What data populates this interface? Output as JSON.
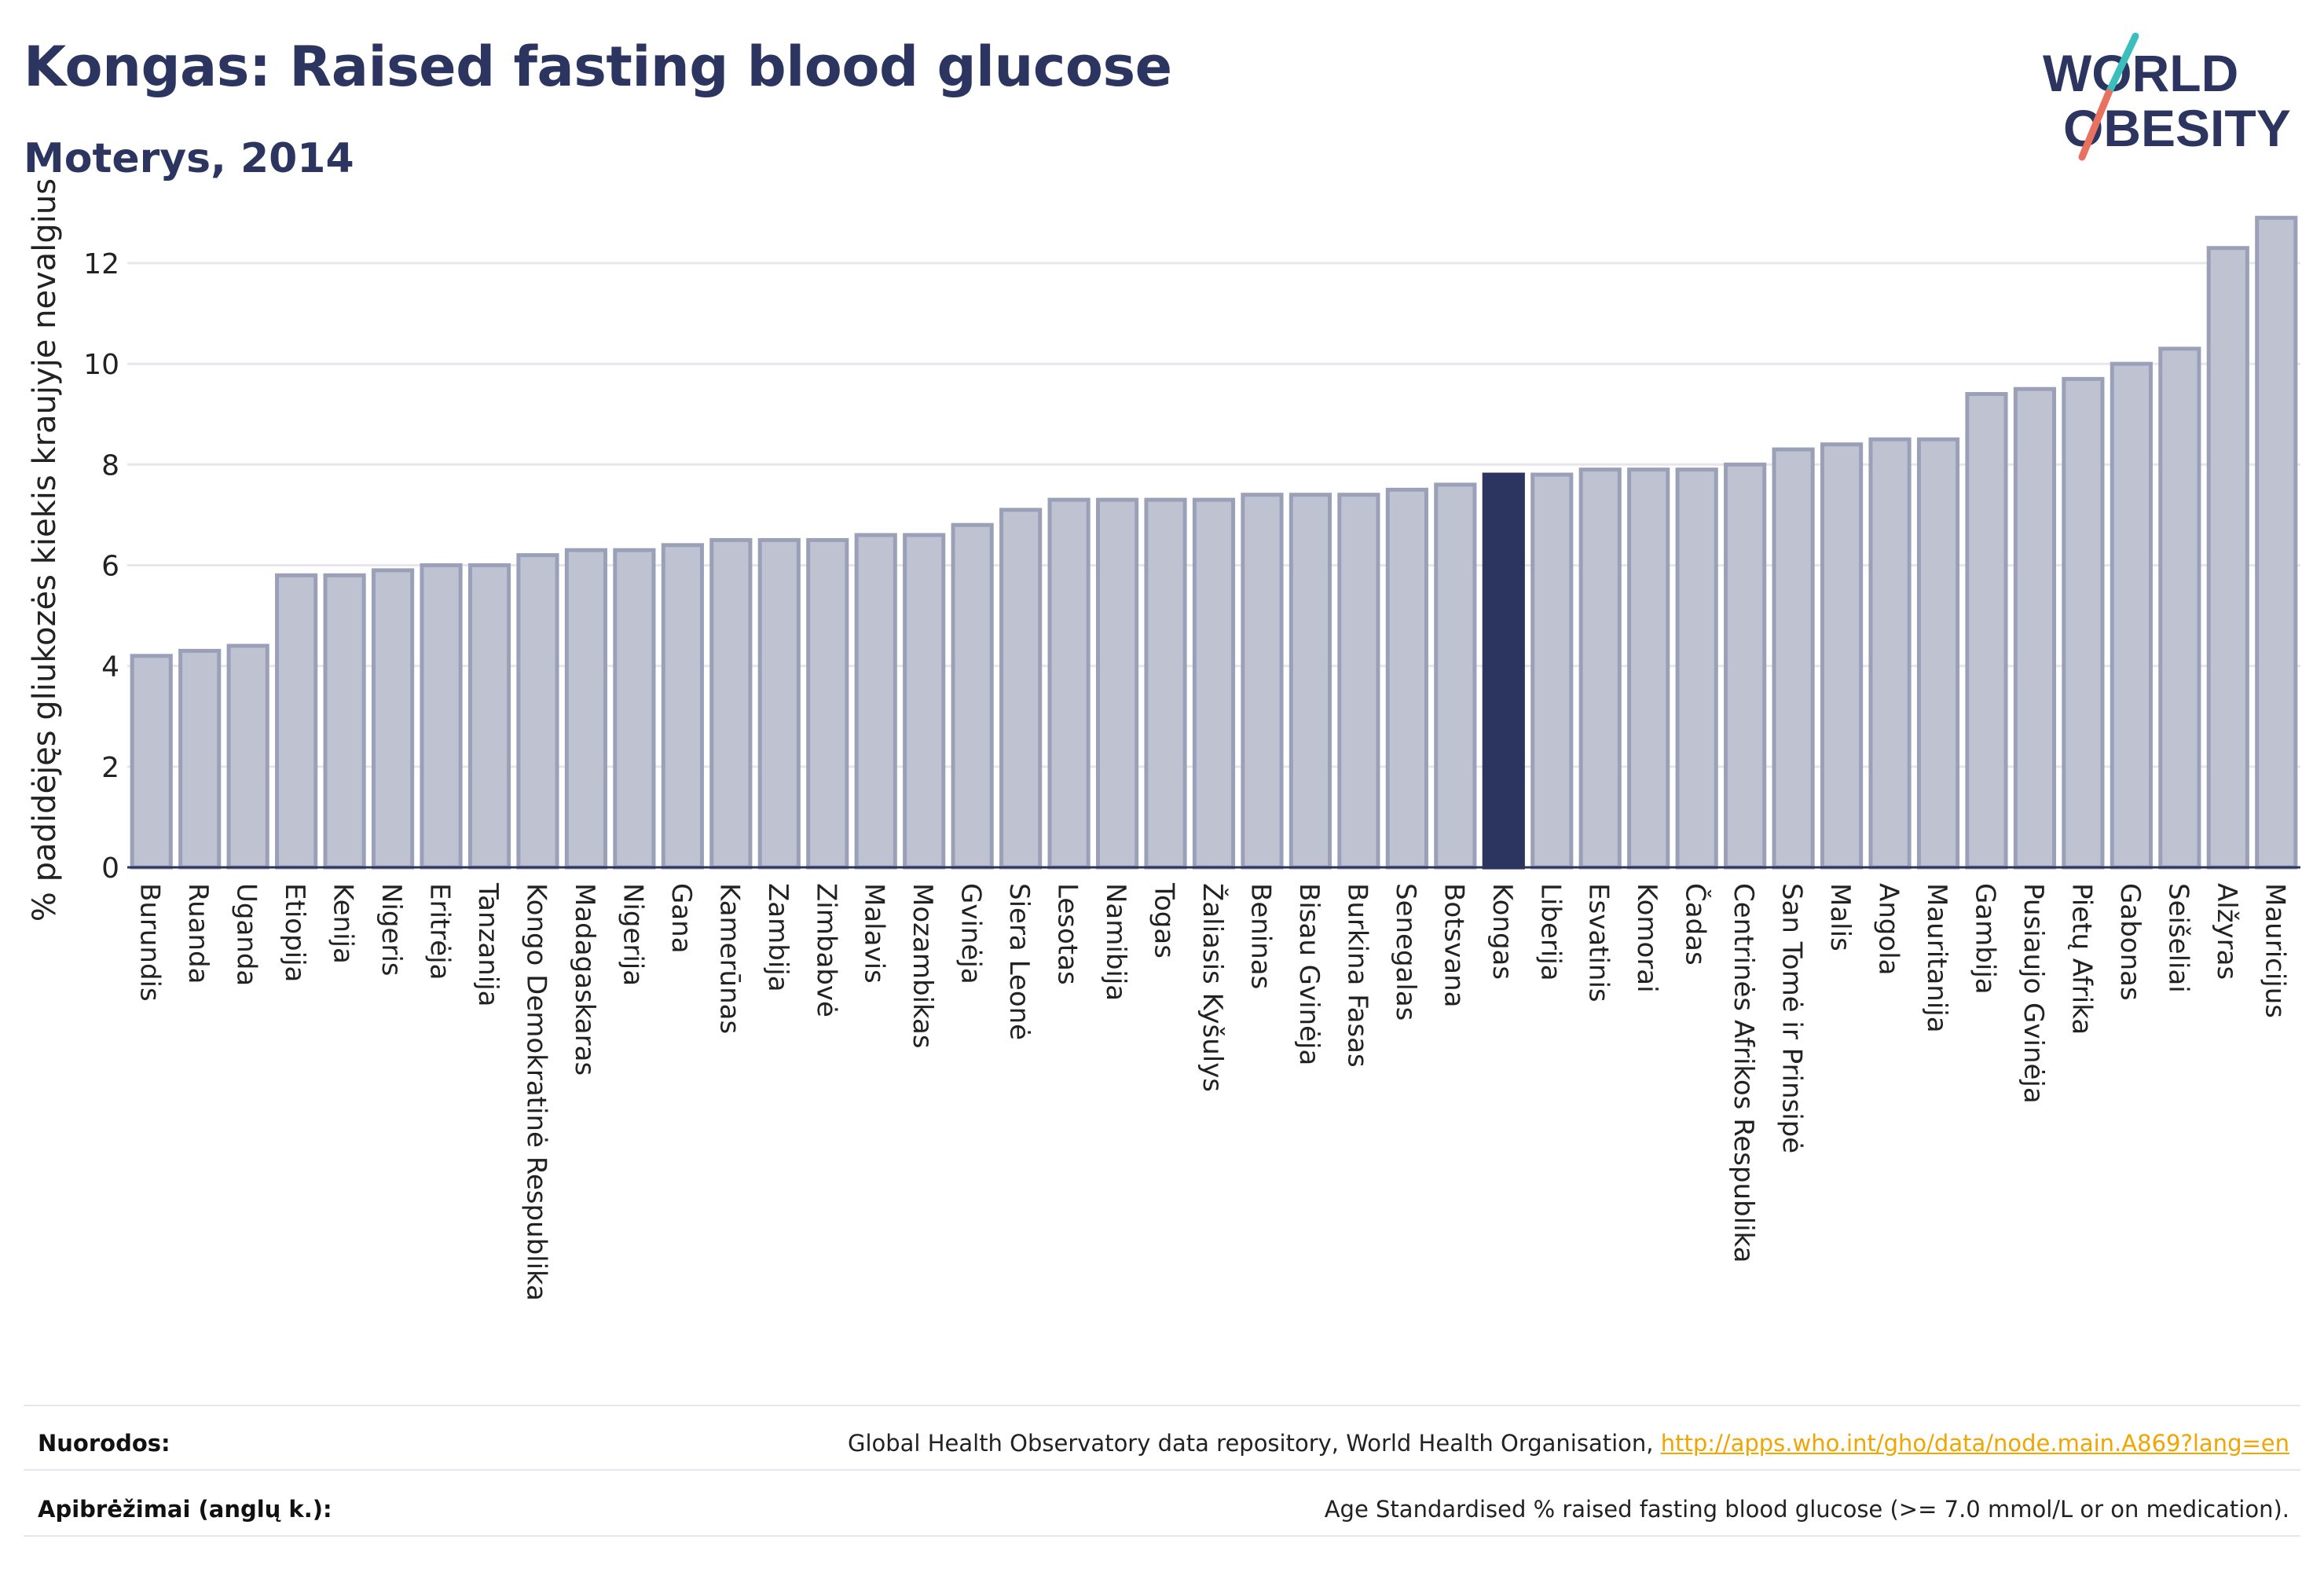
{
  "header": {
    "title": "Kongas: Raised fasting blood glucose",
    "subtitle": "Moterys, 2014"
  },
  "logo": {
    "line1": "WORLD",
    "line2": "OBESITY"
  },
  "colors": {
    "bar_fill": "#bfc3d1",
    "bar_stroke": "#9aa0b8",
    "highlight": "#2b3560",
    "grid": "#e6e6ec",
    "axis": "#2b3560",
    "logo_teal": "#3bbfbd",
    "logo_coral": "#e9715f",
    "link": "#f0a500"
  },
  "chart_data": {
    "type": "bar",
    "title": "Kongas: Raised fasting blood glucose",
    "subtitle": "Moterys, 2014",
    "xlabel": "",
    "ylabel": "% padidėjęs gliukozės kiekis kraujyje nevalgius",
    "ylim": [
      0,
      13.2
    ],
    "yticks": [
      0,
      2,
      4,
      6,
      8,
      10,
      12
    ],
    "grid": true,
    "highlight_category": "Kongas",
    "categories": [
      "Burundis",
      "Ruanda",
      "Uganda",
      "Etiopija",
      "Kenija",
      "Nigeris",
      "Eritrėja",
      "Tanzanija",
      "Kongo Demokratinė Respublika",
      "Madagaskaras",
      "Nigerija",
      "Gana",
      "Kamerūnas",
      "Zambija",
      "Zimbabvė",
      "Malavis",
      "Mozambikas",
      "Gvinėja",
      "Siera Leonė",
      "Lesotas",
      "Namibija",
      "Togas",
      "Žaliasis Kyšulys",
      "Beninas",
      "Bisau Gvinėja",
      "Burkina Fasas",
      "Senegalas",
      "Botsvana",
      "Kongas",
      "Liberija",
      "Esvatinis",
      "Komorai",
      "Čadas",
      "Centrinės Afrikos Respublika",
      "San Tomė ir Prinsipė",
      "Malis",
      "Angola",
      "Mauritanija",
      "Gambija",
      "Pusiaujo Gvinėja",
      "Pietų Afrika",
      "Gabonas",
      "Seišeliai",
      "Alžyras",
      "Mauricijus"
    ],
    "values": [
      4.2,
      4.3,
      4.4,
      5.8,
      5.8,
      5.9,
      6.0,
      6.0,
      6.2,
      6.3,
      6.3,
      6.4,
      6.5,
      6.5,
      6.5,
      6.6,
      6.6,
      6.8,
      7.1,
      7.3,
      7.3,
      7.3,
      7.3,
      7.4,
      7.4,
      7.4,
      7.5,
      7.6,
      7.8,
      7.8,
      7.9,
      7.9,
      7.9,
      8.0,
      8.3,
      8.4,
      8.5,
      8.5,
      9.4,
      9.5,
      9.7,
      10.0,
      10.3,
      12.3,
      12.9
    ]
  },
  "footer": {
    "sources_label": "Nuorodos:",
    "sources_text": "Global Health Observatory data repository, World Health Organisation, ",
    "sources_link": "http://apps.who.int/gho/data/node.main.A869?lang=en",
    "definitions_label": "Apibrėžimai (anglų k.):",
    "definitions_text": "Age Standardised % raised fasting blood glucose (>= 7.0 mmol/L or on medication)."
  }
}
